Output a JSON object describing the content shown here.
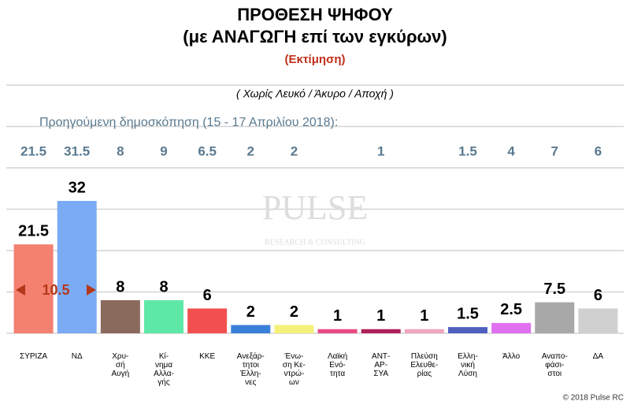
{
  "chart_data": {
    "type": "bar",
    "title": "ΠΡΟΘΕΣΗ ΨΗΦΟΥ",
    "subtitle": "(με ΑΝΑΓΩΓΗ επί των εγκύρων)",
    "estimate_label": "(Εκτίμηση)",
    "note": "( Χωρίς Λευκό / Άκυρο / Αποχή )",
    "previous_label": "Προηγούμενη δημοσκόπηση (15 - 17 Απριλίου 2018):",
    "categories": [
      "ΣΥΡΙΖΑ",
      "ΝΔ",
      "Χρυ-\nσή\nΑυγή",
      "Κί-\nνημα\nΑλλα-\nγής",
      "ΚΚΕ",
      "Ανεξάρ-\nτητοι\nΈλλη-\nνες",
      "Ένω-\nση Κε-\nντρώ-\nων",
      "Λαϊκή\nΕνό-\nτητα",
      "ΑΝΤ-\nΑΡ-\nΣΥΑ",
      "Πλεύση\nΕλευθε-\nρίας",
      "Ελλη-\nνική\nΛύση",
      "Άλλο",
      "Αναπο-\nφάσι-\nστοι",
      "ΔΑ"
    ],
    "values": [
      21.5,
      32,
      8,
      8,
      6,
      2,
      2,
      1,
      1,
      1,
      1.5,
      2.5,
      7.5,
      6
    ],
    "previous_values": [
      21.5,
      31.5,
      8,
      9,
      6.5,
      2,
      2,
      null,
      1,
      null,
      1.5,
      4,
      7,
      6
    ],
    "colors": [
      "#f4806f",
      "#7aabf4",
      "#8b6a5e",
      "#5de8a8",
      "#f25050",
      "#3a7fd8",
      "#f4f07a",
      "#e84a82",
      "#b0205a",
      "#f0a6c0",
      "#5060c0",
      "#e070f0",
      "#a8a8a8",
      "#d0d0d0"
    ],
    "difference_label": "10.5",
    "watermark": [
      "PULSE",
      "RESEARCH & CONSULTING"
    ],
    "copyright": "© 2018 Pulse RC",
    "ylim": [
      0,
      60
    ],
    "yticks": [
      0,
      10,
      20,
      30,
      40,
      50,
      60
    ],
    "grid": true
  }
}
